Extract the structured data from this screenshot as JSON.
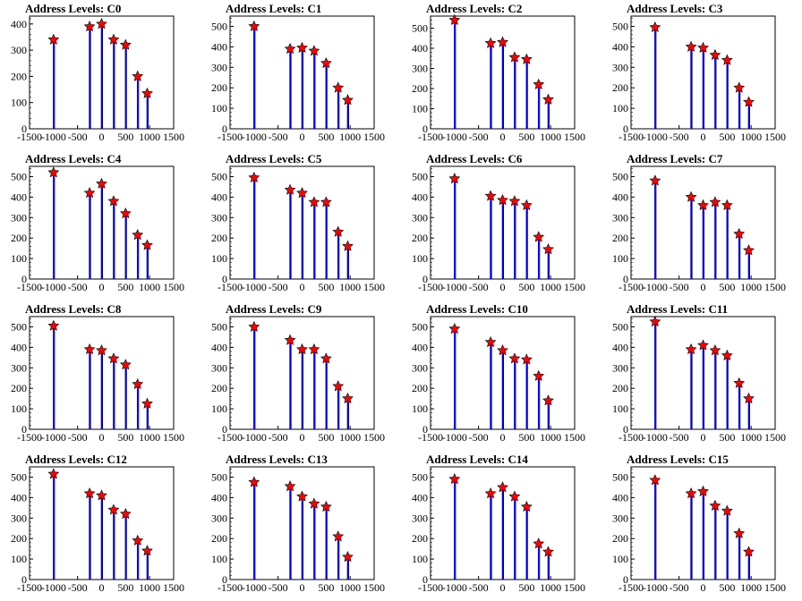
{
  "chart_data": [
    {
      "type": "bar",
      "title": "Address Levels: C0",
      "xlim": [
        -1500,
        1500
      ],
      "ylim": [
        0,
        430
      ],
      "x": [
        -1000,
        -250,
        0,
        250,
        500,
        750,
        950
      ],
      "values": [
        340,
        390,
        400,
        340,
        320,
        200,
        135
      ],
      "yticks": [
        0,
        100,
        200,
        300,
        400
      ],
      "xticks": [
        -1500,
        -1000,
        -500,
        0,
        500,
        1000,
        1500
      ]
    },
    {
      "type": "bar",
      "title": "Address Levels: C1",
      "xlim": [
        -1500,
        1500
      ],
      "ylim": [
        0,
        550
      ],
      "x": [
        -1000,
        -250,
        0,
        250,
        500,
        750,
        950
      ],
      "values": [
        500,
        390,
        395,
        380,
        320,
        200,
        140
      ],
      "yticks": [
        0,
        100,
        200,
        300,
        400,
        500
      ],
      "xticks": [
        -1500,
        -1000,
        -500,
        0,
        500,
        1000,
        1500
      ]
    },
    {
      "type": "bar",
      "title": "Address Levels: C2",
      "xlim": [
        -1500,
        1500
      ],
      "ylim": [
        0,
        560
      ],
      "x": [
        -1000,
        -250,
        0,
        250,
        500,
        750,
        950
      ],
      "values": [
        540,
        425,
        430,
        355,
        345,
        220,
        145
      ],
      "yticks": [
        0,
        100,
        200,
        300,
        400,
        500
      ],
      "xticks": [
        -1500,
        -1000,
        -500,
        0,
        500,
        1000,
        1500
      ]
    },
    {
      "type": "bar",
      "title": "Address Levels: C3",
      "xlim": [
        -1500,
        1500
      ],
      "ylim": [
        0,
        550
      ],
      "x": [
        -1000,
        -250,
        0,
        250,
        500,
        750,
        950
      ],
      "values": [
        495,
        400,
        395,
        360,
        335,
        200,
        130
      ],
      "yticks": [
        0,
        100,
        200,
        300,
        400,
        500
      ],
      "xticks": [
        -1500,
        -1000,
        -500,
        0,
        500,
        1000,
        1500
      ]
    },
    {
      "type": "bar",
      "title": "Address Levels: C4",
      "xlim": [
        -1500,
        1500
      ],
      "ylim": [
        0,
        550
      ],
      "x": [
        -1000,
        -250,
        0,
        250,
        500,
        750,
        950
      ],
      "values": [
        520,
        420,
        465,
        380,
        320,
        215,
        165
      ],
      "yticks": [
        0,
        100,
        200,
        300,
        400,
        500
      ],
      "xticks": [
        -1500,
        -1000,
        -500,
        0,
        500,
        1000,
        1500
      ]
    },
    {
      "type": "bar",
      "title": "Address Levels: C5",
      "xlim": [
        -1500,
        1500
      ],
      "ylim": [
        0,
        550
      ],
      "x": [
        -1000,
        -250,
        0,
        250,
        500,
        750,
        950
      ],
      "values": [
        495,
        435,
        420,
        375,
        375,
        230,
        160
      ],
      "yticks": [
        0,
        100,
        200,
        300,
        400,
        500
      ],
      "xticks": [
        -1500,
        -1000,
        -500,
        0,
        500,
        1000,
        1500
      ]
    },
    {
      "type": "bar",
      "title": "Address Levels: C6",
      "xlim": [
        -1500,
        1500
      ],
      "ylim": [
        0,
        550
      ],
      "x": [
        -1000,
        -250,
        0,
        250,
        500,
        750,
        950
      ],
      "values": [
        490,
        405,
        385,
        380,
        360,
        205,
        145
      ],
      "yticks": [
        0,
        100,
        200,
        300,
        400,
        500
      ],
      "xticks": [
        -1500,
        -1000,
        -500,
        0,
        500,
        1000,
        1500
      ]
    },
    {
      "type": "bar",
      "title": "Address Levels: C7",
      "xlim": [
        -1500,
        1500
      ],
      "ylim": [
        0,
        550
      ],
      "x": [
        -1000,
        -250,
        0,
        250,
        500,
        750,
        950
      ],
      "values": [
        480,
        400,
        360,
        375,
        360,
        220,
        140
      ],
      "yticks": [
        0,
        100,
        200,
        300,
        400,
        500
      ],
      "xticks": [
        -1500,
        -1000,
        -500,
        0,
        500,
        1000,
        1500
      ]
    },
    {
      "type": "bar",
      "title": "Address Levels: C8",
      "xlim": [
        -1500,
        1500
      ],
      "ylim": [
        0,
        550
      ],
      "x": [
        -1000,
        -250,
        0,
        250,
        500,
        750,
        950
      ],
      "values": [
        505,
        390,
        385,
        345,
        315,
        220,
        125
      ],
      "yticks": [
        0,
        100,
        200,
        300,
        400,
        500
      ],
      "xticks": [
        -1500,
        -1000,
        -500,
        0,
        500,
        1000,
        1500
      ]
    },
    {
      "type": "bar",
      "title": "Address Levels: C9",
      "xlim": [
        -1500,
        1500
      ],
      "ylim": [
        0,
        550
      ],
      "x": [
        -1000,
        -250,
        0,
        250,
        500,
        750,
        950
      ],
      "values": [
        500,
        435,
        390,
        390,
        345,
        210,
        150
      ],
      "yticks": [
        0,
        100,
        200,
        300,
        400,
        500
      ],
      "xticks": [
        -1500,
        -1000,
        -500,
        0,
        500,
        1000,
        1500
      ]
    },
    {
      "type": "bar",
      "title": "Address Levels: C10",
      "xlim": [
        -1500,
        1500
      ],
      "ylim": [
        0,
        550
      ],
      "x": [
        -1000,
        -250,
        0,
        250,
        500,
        750,
        950
      ],
      "values": [
        490,
        425,
        385,
        345,
        340,
        260,
        140
      ],
      "yticks": [
        0,
        100,
        200,
        300,
        400,
        500
      ],
      "xticks": [
        -1500,
        -1000,
        -500,
        0,
        500,
        1000,
        1500
      ]
    },
    {
      "type": "bar",
      "title": "Address Levels: C11",
      "xlim": [
        -1500,
        1500
      ],
      "ylim": [
        0,
        550
      ],
      "x": [
        -1000,
        -250,
        0,
        250,
        500,
        750,
        950
      ],
      "values": [
        525,
        390,
        410,
        385,
        360,
        225,
        150
      ],
      "yticks": [
        0,
        100,
        200,
        300,
        400,
        500
      ],
      "xticks": [
        -1500,
        -1000,
        -500,
        0,
        500,
        1000,
        1500
      ]
    },
    {
      "type": "bar",
      "title": "Address Levels: C12",
      "xlim": [
        -1500,
        1500
      ],
      "ylim": [
        0,
        550
      ],
      "x": [
        -1000,
        -250,
        0,
        250,
        500,
        750,
        950
      ],
      "values": [
        515,
        420,
        410,
        340,
        320,
        190,
        140
      ],
      "yticks": [
        0,
        100,
        200,
        300,
        400,
        500
      ],
      "xticks": [
        -1500,
        -1000,
        -500,
        0,
        500,
        1000,
        1500
      ]
    },
    {
      "type": "bar",
      "title": "Address Levels: C13",
      "xlim": [
        -1500,
        1500
      ],
      "ylim": [
        0,
        550
      ],
      "x": [
        -1000,
        -250,
        0,
        250,
        500,
        750,
        950
      ],
      "values": [
        475,
        455,
        405,
        370,
        355,
        210,
        110
      ],
      "yticks": [
        0,
        100,
        200,
        300,
        400,
        500
      ],
      "xticks": [
        -1500,
        -1000,
        -500,
        0,
        500,
        1000,
        1500
      ]
    },
    {
      "type": "bar",
      "title": "Address Levels: C14",
      "xlim": [
        -1500,
        1500
      ],
      "ylim": [
        0,
        550
      ],
      "x": [
        -1000,
        -250,
        0,
        250,
        500,
        750,
        950
      ],
      "values": [
        490,
        420,
        450,
        405,
        355,
        175,
        135
      ],
      "yticks": [
        0,
        100,
        200,
        300,
        400,
        500
      ],
      "xticks": [
        -1500,
        -1000,
        -500,
        0,
        500,
        1000,
        1500
      ]
    },
    {
      "type": "bar",
      "title": "Address Levels: C15",
      "xlim": [
        -1500,
        1500
      ],
      "ylim": [
        0,
        550
      ],
      "x": [
        -1000,
        -250,
        0,
        250,
        500,
        750,
        950
      ],
      "values": [
        485,
        420,
        430,
        360,
        335,
        225,
        135
      ],
      "yticks": [
        0,
        100,
        200,
        300,
        400,
        500
      ],
      "xticks": [
        -1500,
        -1000,
        -500,
        0,
        500,
        1000,
        1500
      ]
    }
  ],
  "colors": {
    "bar": "#0000ee",
    "marker": "#ff0000",
    "marker_outline": "#000000",
    "axis": "#000000"
  }
}
